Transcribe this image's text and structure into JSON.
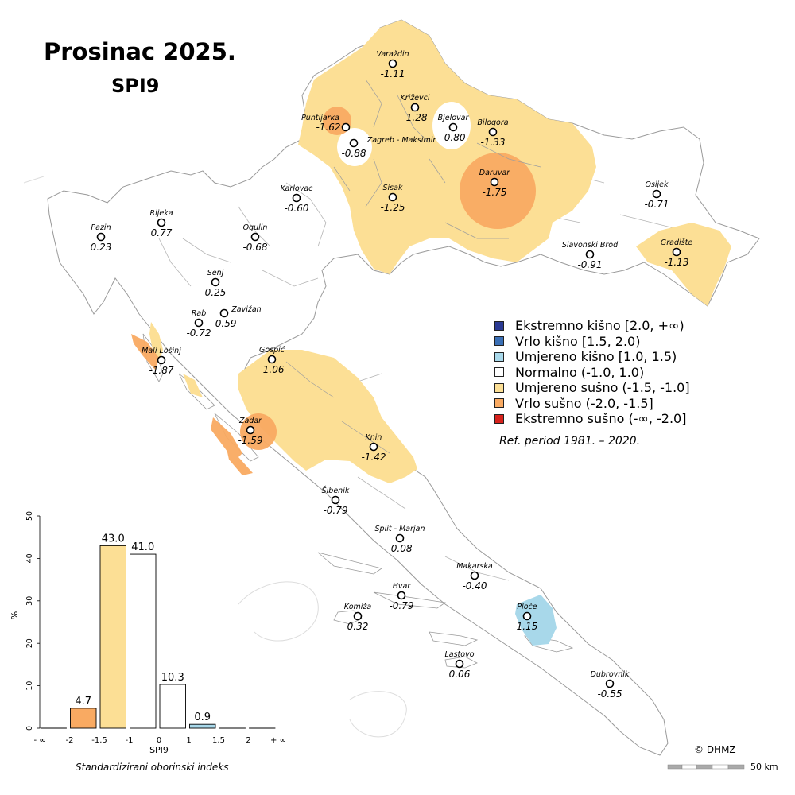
{
  "title": "Prosinac 2025.",
  "subtitle": "SPI9",
  "stations": [
    {
      "name": "Varaždin",
      "value": "-1.11"
    },
    {
      "name": "Križevci",
      "value": "-1.28"
    },
    {
      "name": "Bjelovar",
      "value": "-0.80"
    },
    {
      "name": "Bilogora",
      "value": "-1.33"
    },
    {
      "name": "Puntijarka",
      "value": "-1.62"
    },
    {
      "name": "Zagreb - Maksimir",
      "value": "-0.88"
    },
    {
      "name": "Daruvar",
      "value": "-1.75"
    },
    {
      "name": "Karlovac",
      "value": "-0.60"
    },
    {
      "name": "Sisak",
      "value": "-1.25"
    },
    {
      "name": "Osijek",
      "value": "-0.71"
    },
    {
      "name": "Pazin",
      "value": "0.23"
    },
    {
      "name": "Rijeka",
      "value": "0.77"
    },
    {
      "name": "Ogulin",
      "value": "-0.68"
    },
    {
      "name": "Slavonski Brod",
      "value": "-0.91"
    },
    {
      "name": "Gradište",
      "value": "-1.13"
    },
    {
      "name": "Senj",
      "value": "0.25"
    },
    {
      "name": "Rab",
      "value": "-0.72"
    },
    {
      "name": "Zavižan",
      "value": "-0.59"
    },
    {
      "name": "Mali Lošinj",
      "value": "-1.87"
    },
    {
      "name": "Gospić",
      "value": "-1.06"
    },
    {
      "name": "Zadar",
      "value": "-1.59"
    },
    {
      "name": "Knin",
      "value": "-1.42"
    },
    {
      "name": "Šibenik",
      "value": "-0.79"
    },
    {
      "name": "Split - Marjan",
      "value": "-0.08"
    },
    {
      "name": "Makarska",
      "value": "-0.40"
    },
    {
      "name": "Hvar",
      "value": "-0.79"
    },
    {
      "name": "Komiža",
      "value": "0.32"
    },
    {
      "name": "Ploče",
      "value": "1.15"
    },
    {
      "name": "Lastovo",
      "value": "0.06"
    },
    {
      "name": "Dubrovnik",
      "value": "-0.55"
    }
  ],
  "legend": [
    {
      "label": "Ekstremno kišno [2.0, +∞)",
      "color": "#2b3a93"
    },
    {
      "label": "Vrlo kišno [1.5, 2.0)",
      "color": "#3a6fb5"
    },
    {
      "label": "Umjereno kišno [1.0, 1.5)",
      "color": "#a8d8ea"
    },
    {
      "label": "Normalno (-1.0, 1.0)",
      "color": "#ffffff"
    },
    {
      "label": "Umjereno sušno (-1.5, -1.0]",
      "color": "#fcdf95"
    },
    {
      "label": "Vrlo sušno (-2.0, -1.5]",
      "color": "#f9aa62"
    },
    {
      "label": "Ekstremno sušno (-∞, -2.0]",
      "color": "#d7221c"
    }
  ],
  "ref_period": "Ref. period 1981. – 2020.",
  "copyright": "© DHMZ",
  "scale_label": "50 km",
  "chart_data": {
    "type": "bar",
    "categories": [
      "(-∞, -2)",
      "(-2, -1.5)",
      "(-1.5, -1)",
      "(-1, 0)",
      "(0, 1)",
      "(1, 1.5)",
      "(1.5, 2)",
      "(2, +∞)"
    ],
    "values": [
      0,
      4.7,
      43.0,
      41.0,
      10.3,
      0.9,
      0,
      0
    ],
    "value_labels": [
      "",
      "4.7",
      "43.0",
      "41.0",
      "10.3",
      "0.9",
      "",
      ""
    ],
    "colors": [
      "#d7221c",
      "#f9aa62",
      "#fcdf95",
      "#ffffff",
      "#ffffff",
      "#a8d8ea",
      "#3a6fb5",
      "#2b3a93"
    ],
    "xticks": [
      "- ∞",
      "-2",
      "-1.5",
      "-1",
      "0",
      "1",
      "1.5",
      "2",
      "+ ∞"
    ],
    "yticks": [
      "0",
      "10",
      "20",
      "30",
      "40",
      "50"
    ],
    "ylim": [
      0,
      50
    ],
    "xlabel": "SPI9",
    "ylabel": "%",
    "caption": "Standardizirani oborinski indeks"
  }
}
